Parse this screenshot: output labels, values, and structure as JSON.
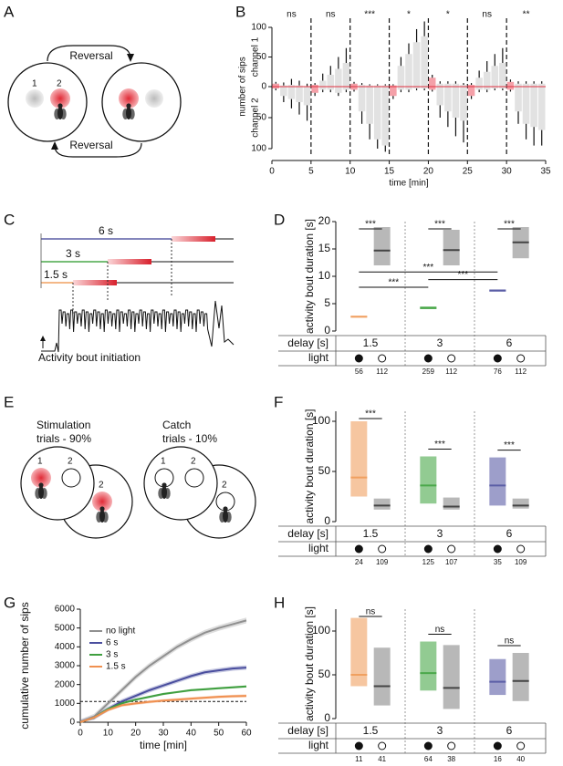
{
  "panels": [
    "A",
    "B",
    "C",
    "D",
    "E",
    "F",
    "G",
    "H"
  ],
  "diagram_a": {
    "labels": [
      "1",
      "2"
    ],
    "reversal_top": "Reversal",
    "reversal_bottom": "Reversal"
  },
  "diagram_c": {
    "delays": [
      "6 s",
      "3 s",
      "1.5 s"
    ],
    "delay_colors": [
      "#5b5ea6",
      "#4aa84a",
      "#f0a060"
    ],
    "caption": "Activity bout initiation"
  },
  "diagram_e": {
    "stimulation": [
      "Stimulation",
      "trials - 90%"
    ],
    "catch": [
      "Catch",
      "trials - 10%"
    ],
    "labels": [
      "1",
      "2",
      "2"
    ]
  },
  "chart_data": [
    {
      "type": "mirror_bar",
      "xlabel": "time [min]",
      "ylabel": "number of sips",
      "xlim": [
        0,
        35
      ],
      "xticks": [
        0,
        5,
        10,
        15,
        20,
        25,
        30,
        35
      ],
      "ylim": [
        0,
        100
      ],
      "yticks": [
        0,
        50,
        100
      ],
      "blocks": [
        "ns",
        "ns",
        "***",
        "*",
        "*",
        "ns",
        "**"
      ],
      "light_bins": [
        0,
        5,
        10,
        15,
        20,
        25,
        30
      ],
      "light_color": "#f4a0a8",
      "color": "#e2e2e2",
      "series": [
        {
          "name": "channel 1",
          "values": [
            5,
            2,
            3,
            2,
            1,
            3,
            10,
            20,
            30,
            40,
            5,
            3,
            2,
            2,
            2,
            2,
            35,
            55,
            75,
            85,
            15,
            5,
            5,
            5,
            3,
            3,
            15,
            25,
            35,
            40,
            8,
            5,
            5,
            5,
            5
          ],
          "errors": [
            3,
            5,
            10,
            8,
            4,
            3,
            12,
            15,
            20,
            25,
            3,
            3,
            2,
            2,
            2,
            2,
            15,
            18,
            22,
            25,
            5,
            4,
            4,
            4,
            3,
            3,
            12,
            18,
            20,
            25,
            4,
            4,
            4,
            4,
            4
          ]
        },
        {
          "name": "channel 2",
          "yticks": [
            50,
            100
          ],
          "values": [
            3,
            15,
            20,
            25,
            30,
            10,
            5,
            5,
            10,
            5,
            5,
            40,
            60,
            85,
            95,
            15,
            5,
            5,
            3,
            3,
            5,
            30,
            40,
            50,
            55,
            15,
            5,
            5,
            3,
            3,
            5,
            40,
            60,
            65,
            70
          ],
          "errors": [
            3,
            10,
            15,
            20,
            25,
            5,
            4,
            4,
            5,
            4,
            3,
            20,
            25,
            15,
            10,
            5,
            4,
            4,
            3,
            3,
            3,
            20,
            25,
            30,
            35,
            5,
            4,
            4,
            3,
            3,
            3,
            20,
            25,
            30,
            25
          ]
        }
      ]
    },
    {
      "type": "range",
      "ylabel": "activity bout duration [s]",
      "ylim": [
        0,
        20
      ],
      "yticks": [
        0,
        5,
        10,
        15,
        20
      ],
      "delay_label": "delay [s]",
      "light_label": "light",
      "delays": [
        1.5,
        3,
        6
      ],
      "light": [
        true,
        false,
        true,
        false,
        true,
        false
      ],
      "low": [
        2.5,
        12,
        4.0,
        12,
        7.2,
        13.3
      ],
      "median": [
        2.6,
        14.7,
        4.2,
        14.8,
        7.4,
        16.2
      ],
      "high": [
        2.8,
        19,
        4.5,
        18.5,
        7.6,
        19
      ],
      "n": [
        56,
        112,
        259,
        112,
        76,
        112
      ],
      "colors": [
        "#f0a060",
        "#888888",
        "#4aa84a",
        "#888888",
        "#5b5ea6",
        "#888888"
      ],
      "comparisons": [
        {
          "label": "***",
          "between": [
            0,
            1
          ]
        },
        {
          "label": "***",
          "between": [
            2,
            3
          ]
        },
        {
          "label": "***",
          "between": [
            4,
            5
          ]
        },
        {
          "label": "***",
          "between": [
            0,
            4
          ]
        },
        {
          "label": "***",
          "between": [
            2,
            4
          ]
        },
        {
          "label": "***",
          "between": [
            0,
            2
          ]
        }
      ]
    },
    {
      "type": "range",
      "ylabel": "activity bout duration [s]",
      "ylim": [
        0,
        110
      ],
      "yticks": [
        0,
        50,
        100
      ],
      "delay_label": "delay [s]",
      "light_label": "light",
      "delays": [
        1.5,
        3,
        6
      ],
      "light": [
        true,
        false,
        true,
        false,
        true,
        false
      ],
      "low": [
        25,
        12,
        18,
        12,
        16,
        13
      ],
      "median": [
        44,
        16,
        36,
        15,
        36,
        16
      ],
      "high": [
        100,
        23,
        65,
        24,
        64,
        23
      ],
      "n": [
        24,
        109,
        125,
        107,
        35,
        109
      ],
      "colors": [
        "#f0a060",
        "#888888",
        "#4aa84a",
        "#888888",
        "#5b5ea6",
        "#888888"
      ],
      "comparisons": [
        {
          "label": "***",
          "between": [
            0,
            1
          ]
        },
        {
          "label": "***",
          "between": [
            2,
            3
          ]
        },
        {
          "label": "***",
          "between": [
            4,
            5
          ]
        }
      ]
    },
    {
      "type": "line",
      "xlabel": "time [min]",
      "ylabel": "cumulative number of sips",
      "xlim": [
        0,
        60
      ],
      "xticks": [
        0,
        10,
        20,
        30,
        40,
        50,
        60
      ],
      "ylim": [
        0,
        6000
      ],
      "yticks": [
        0,
        1000,
        2000,
        3000,
        4000,
        5000,
        6000
      ],
      "hline": 1100,
      "x": [
        0,
        5,
        10,
        15,
        20,
        25,
        30,
        35,
        40,
        45,
        50,
        55,
        60
      ],
      "series": [
        {
          "name": "no light",
          "color": "#909090",
          "error": 150,
          "values": [
            0,
            300,
            1000,
            1700,
            2400,
            3000,
            3500,
            4000,
            4400,
            4750,
            5000,
            5200,
            5400
          ]
        },
        {
          "name": "6 s",
          "color": "#4a4e9e",
          "error": 120,
          "values": [
            0,
            250,
            700,
            1100,
            1400,
            1700,
            1950,
            2200,
            2450,
            2650,
            2750,
            2850,
            2900
          ]
        },
        {
          "name": "3 s",
          "color": "#3f9f3f",
          "error": 60,
          "values": [
            0,
            250,
            700,
            1000,
            1200,
            1350,
            1500,
            1600,
            1700,
            1750,
            1800,
            1850,
            1900
          ]
        },
        {
          "name": "1.5 s",
          "color": "#f09050",
          "error": 80,
          "values": [
            0,
            250,
            650,
            900,
            1000,
            1080,
            1150,
            1200,
            1250,
            1300,
            1350,
            1380,
            1400
          ]
        }
      ]
    },
    {
      "type": "range",
      "ylabel": "activity bout duration [s]",
      "ylim": [
        0,
        125
      ],
      "yticks": [
        0,
        50,
        100
      ],
      "delay_label": "delay [s]",
      "light_label": "light",
      "delays": [
        1.5,
        3,
        6
      ],
      "light": [
        true,
        false,
        true,
        false,
        true,
        false
      ],
      "low": [
        37,
        15,
        32,
        11,
        27,
        20
      ],
      "median": [
        50,
        37,
        52,
        35,
        42,
        43
      ],
      "high": [
        115,
        81,
        88,
        84,
        68,
        75
      ],
      "n": [
        11,
        41,
        64,
        38,
        16,
        40
      ],
      "colors": [
        "#f0a060",
        "#888888",
        "#4aa84a",
        "#888888",
        "#5b5ea6",
        "#888888"
      ],
      "comparisons": [
        {
          "label": "ns",
          "between": [
            0,
            1
          ]
        },
        {
          "label": "ns",
          "between": [
            2,
            3
          ]
        },
        {
          "label": "ns",
          "between": [
            4,
            5
          ]
        }
      ]
    }
  ]
}
